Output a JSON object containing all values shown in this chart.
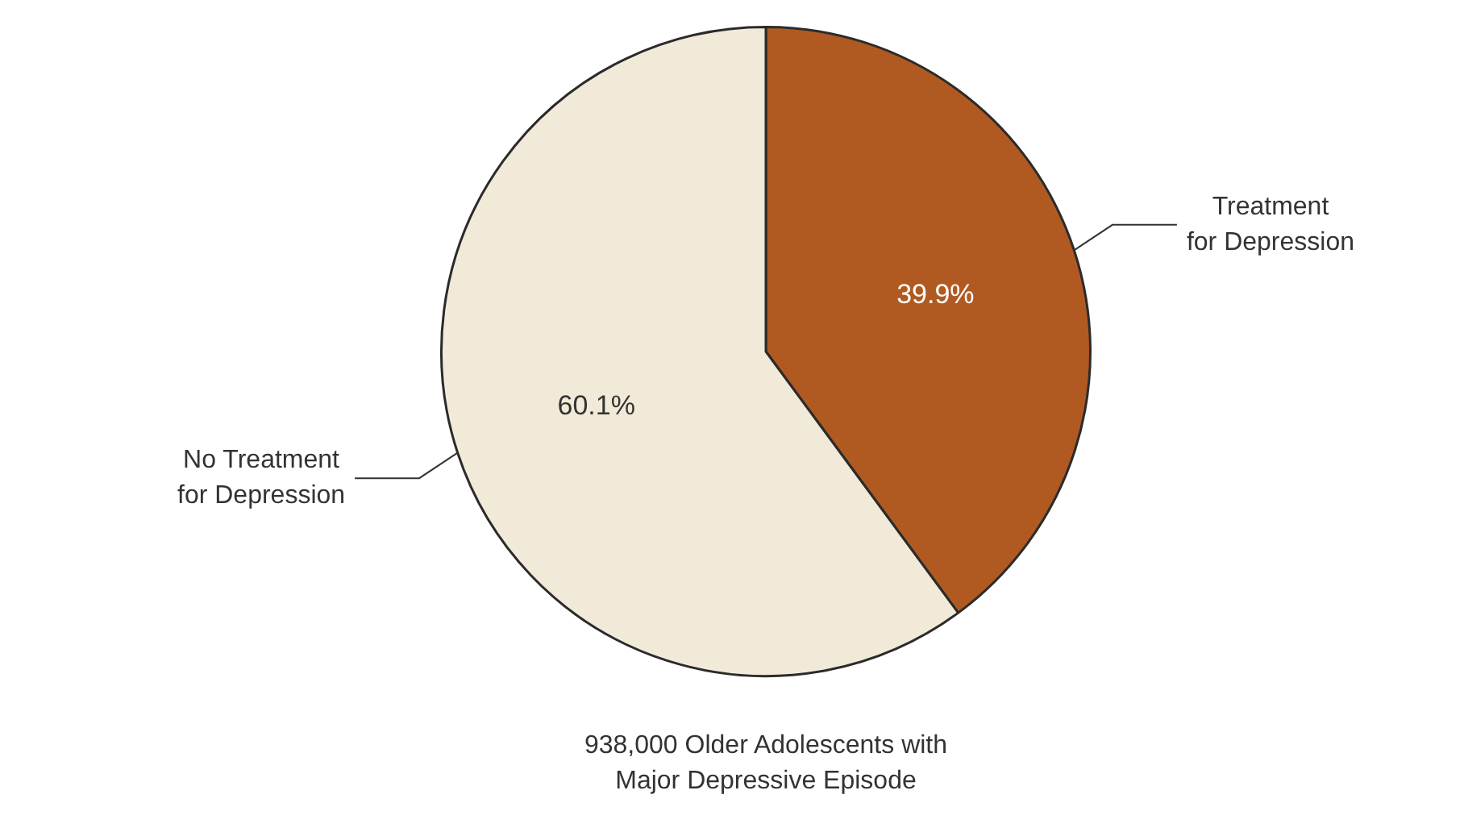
{
  "chart_data": {
    "type": "pie",
    "categories": [
      "Treatment for Depression",
      "No Treatment for Depression"
    ],
    "values": [
      39.9,
      60.1
    ],
    "colors": [
      "#b05a22",
      "#f2ead9"
    ],
    "value_labels": [
      "39.9%",
      "60.1%"
    ],
    "title": "938,000 Older Adolescents with Major Depressive Episode",
    "legend": false
  }
}
